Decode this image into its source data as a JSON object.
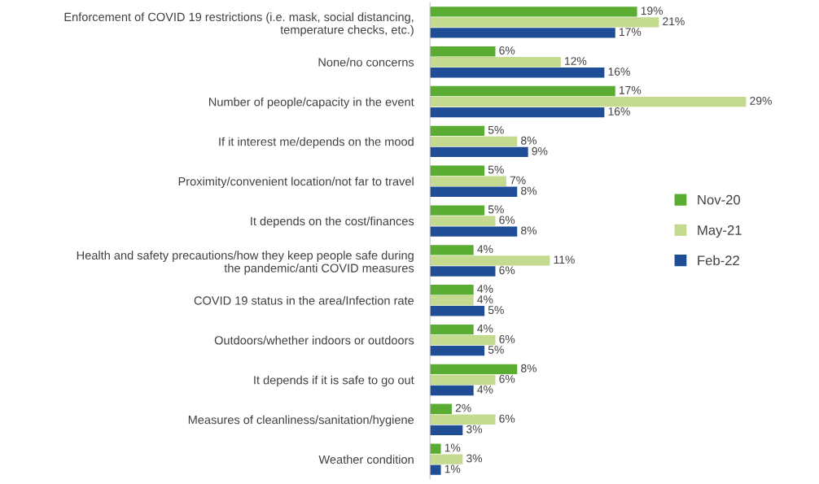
{
  "chart_data": {
    "type": "bar",
    "orientation": "horizontal",
    "categories": [
      "Enforcement of COVID 19 restrictions (i.e. mask, social distancing,\ntemperature checks, etc.)",
      "None/no concerns",
      "Number of people/capacity in the event",
      "If it interest me/depends on the mood",
      "Proximity/convenient location/not far to travel",
      "It depends on the cost/finances",
      "Health and safety precautions/how they keep people safe during\nthe pandemic/anti COVID measures",
      "COVID 19 status in the area/Infection rate",
      "Outdoors/whether indoors or outdoors",
      "It depends if it is safe to go out",
      "Measures of cleanliness/sanitation/hygiene",
      "Weather condition"
    ],
    "series": [
      {
        "name": "Nov-20",
        "color": "#5aac32",
        "values": [
          19,
          6,
          17,
          5,
          5,
          5,
          4,
          4,
          4,
          8,
          2,
          1
        ],
        "value_labels": [
          "19%",
          "6%",
          "17%",
          "5%",
          "5%",
          "5%",
          "4%",
          "4%",
          "4%",
          "8%",
          "2%",
          "1%"
        ]
      },
      {
        "name": "May-21",
        "color": "#c4da8e",
        "values": [
          21,
          12,
          29,
          8,
          7,
          6,
          11,
          4,
          6,
          6,
          6,
          3
        ],
        "value_labels": [
          "21%",
          "12%",
          "29%",
          "8%",
          "7%",
          "6%",
          "11%",
          "4%",
          "6%",
          "6%",
          "6%",
          "3%"
        ]
      },
      {
        "name": "Feb-22",
        "color": "#1f4e96",
        "values": [
          17,
          16,
          16,
          9,
          8,
          8,
          6,
          5,
          5,
          4,
          3,
          1
        ],
        "value_labels": [
          "17%",
          "16%",
          "16%",
          "9%",
          "8%",
          "8%",
          "6%",
          "5%",
          "5%",
          "4%",
          "3%",
          "1%"
        ]
      }
    ],
    "legend": "right",
    "grid": false,
    "tick_labels": "y"
  }
}
